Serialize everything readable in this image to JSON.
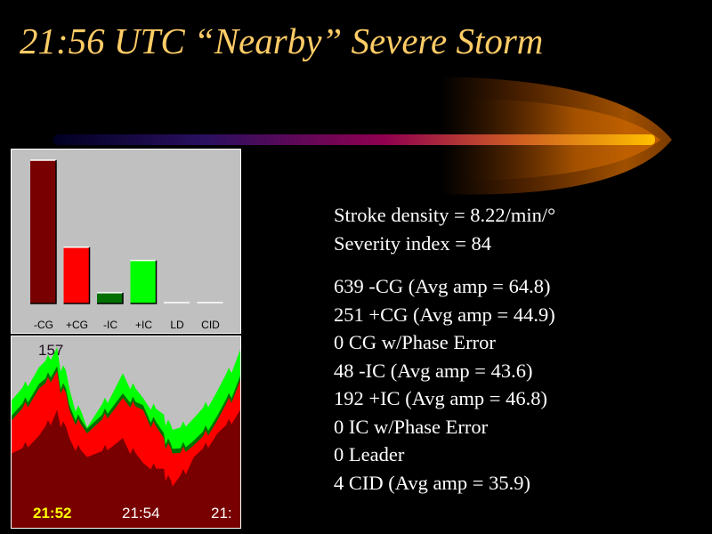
{
  "title": "21:56 UTC “Nearby” Severe Storm",
  "stats": {
    "density": "Stroke density = 8.22/min/°",
    "severity": "Severity index = 84",
    "lines": [
      "639 -CG (Avg amp = 64.8)",
      "251 +CG (Avg amp = 44.9)",
      "0 CG w/Phase Error",
      "48 -IC (Avg amp = 43.6)",
      "192 +IC (Avg amp = 46.8)",
      "0 IC w/Phase Error",
      "0 Leader",
      "4 CID (Avg amp = 35.9)"
    ]
  },
  "colors": {
    "negCG": "#780000",
    "posCG": "#ff0000",
    "negIC": "#007000",
    "posIC": "#00ff00",
    "title": "#ffcc66"
  },
  "chart_data": [
    {
      "type": "bar",
      "categories": [
        "-CG",
        "+CG",
        "-IC",
        "+IC",
        "LD",
        "CID"
      ],
      "values": [
        639,
        251,
        48,
        192,
        0,
        4
      ],
      "ylim": [
        0,
        639
      ]
    },
    {
      "type": "area",
      "stacked": true,
      "peak_label": "157",
      "x_minutes_after_2152": [
        -0.55,
        -0.12,
        0.22,
        0.45,
        0.78,
        1.45,
        1.83,
        2.22,
        2.38,
        2.78,
        3.22,
        3.62
      ],
      "x_tick_labels": [
        "21:52",
        "21:54",
        "21:"
      ],
      "ylim": [
        0,
        157
      ],
      "series": [
        {
          "name": "-CG",
          "values": [
            63,
            78,
            100,
            76,
            60,
            76,
            55,
            50,
            35,
            60,
            80,
            100
          ]
        },
        {
          "name": "+CG",
          "values": [
            28,
            40,
            33,
            24,
            20,
            34,
            45,
            26,
            28,
            10,
            11,
            25
          ]
        },
        {
          "name": "-IC",
          "values": [
            4,
            4,
            4,
            4,
            4,
            4,
            4,
            4,
            4,
            4,
            4,
            4
          ]
        },
        {
          "name": "+IC",
          "values": [
            13,
            14,
            16,
            14,
            1,
            17,
            6,
            16,
            16,
            19,
            21,
            22
          ]
        }
      ]
    }
  ]
}
